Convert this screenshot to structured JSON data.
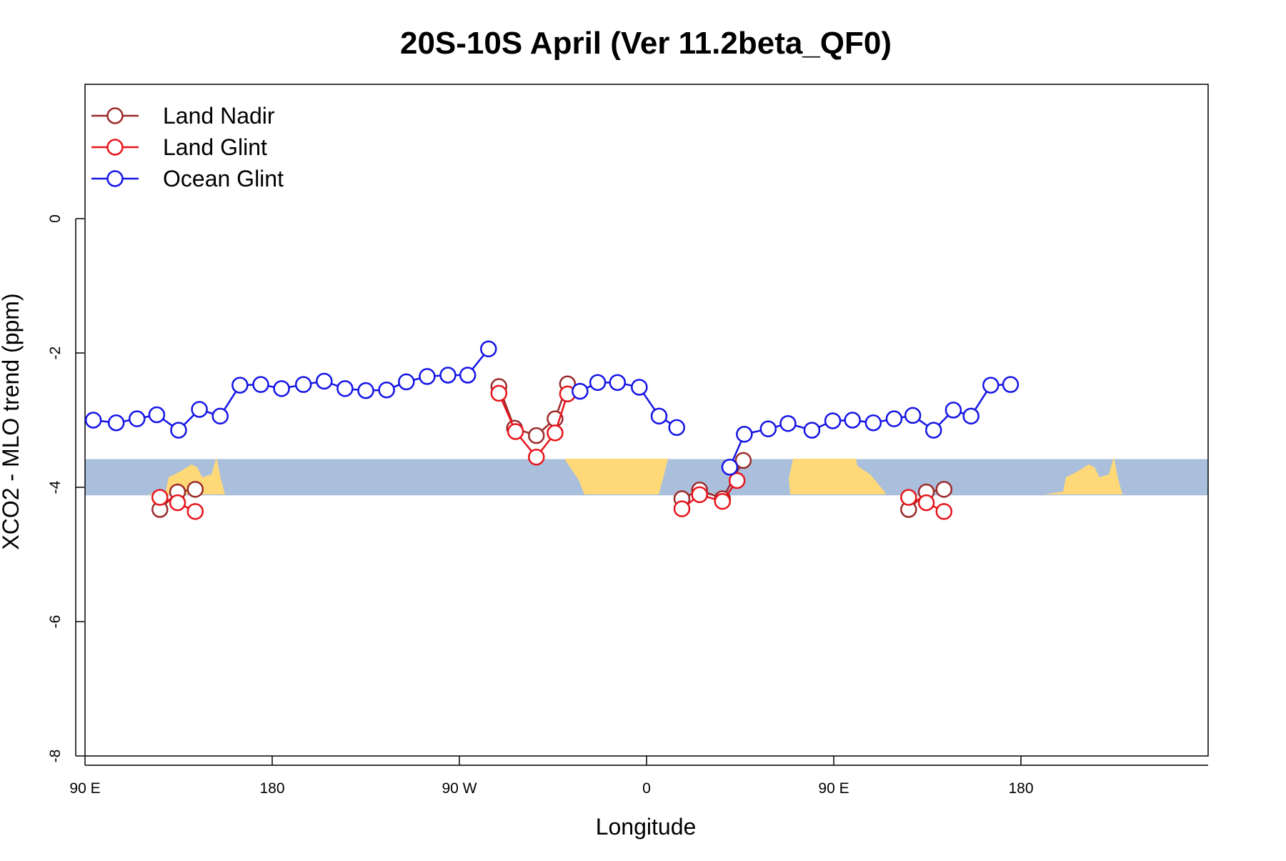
{
  "chart_data": {
    "type": "line",
    "title": "20S-10S April (Ver 11.2beta_QF0)",
    "xlabel": "Longitude",
    "ylabel": "XCO2 - MLO trend (ppm)",
    "xlim": [
      90,
      630
    ],
    "ylim": [
      -8,
      2
    ],
    "x_ticks": [
      {
        "value": 90,
        "label": "90 E"
      },
      {
        "value": 180,
        "label": "180"
      },
      {
        "value": 270,
        "label": "90 W"
      },
      {
        "value": 360,
        "label": "0"
      },
      {
        "value": 450,
        "label": "90 E"
      },
      {
        "value": 540,
        "label": "180"
      }
    ],
    "y_ticks": [
      {
        "value": 0,
        "label": "0"
      },
      {
        "value": -2,
        "label": "-2"
      },
      {
        "value": -4,
        "label": "-4"
      },
      {
        "value": -6,
        "label": "-6"
      },
      {
        "value": -8,
        "label": "-8"
      }
    ],
    "map_band": {
      "lat_range": "20S-10S",
      "y_top": -3.58,
      "y_bottom": -4.12,
      "ocean_color": "#a9bfdc",
      "land_color": "#ffd978"
    },
    "legend_position": "top-left",
    "series": [
      {
        "name": "Land Nadir",
        "color": "#9b2a2a",
        "segments": [
          [
            [
              126,
              -4.33
            ],
            [
              134.5,
              -4.07
            ],
            [
              143,
              -4.03
            ]
          ],
          [
            [
              289,
              -2.5
            ],
            [
              296.5,
              -3.12
            ],
            [
              307,
              -3.23
            ],
            [
              316,
              -2.98
            ],
            [
              322,
              -2.46
            ]
          ],
          [
            [
              377,
              -4.17
            ],
            [
              385.5,
              -4.04
            ],
            [
              396.5,
              -4.17
            ],
            [
              406.5,
              -3.6
            ]
          ],
          [
            [
              486,
              -4.33
            ],
            [
              494.5,
              -4.07
            ],
            [
              503,
              -4.03
            ]
          ]
        ]
      },
      {
        "name": "Land Glint",
        "color": "#e8141b",
        "segments": [
          [
            [
              126,
              -4.15
            ],
            [
              134.5,
              -4.23
            ],
            [
              143,
              -4.36
            ]
          ],
          [
            [
              289,
              -2.6
            ],
            [
              297,
              -3.17
            ],
            [
              307,
              -3.55
            ],
            [
              316,
              -3.19
            ],
            [
              322,
              -2.61
            ]
          ],
          [
            [
              377,
              -4.32
            ],
            [
              385.5,
              -4.11
            ],
            [
              396.5,
              -4.21
            ],
            [
              403.5,
              -3.9
            ]
          ],
          [
            [
              486,
              -4.15
            ],
            [
              494.5,
              -4.23
            ],
            [
              503,
              -4.36
            ]
          ]
        ]
      },
      {
        "name": "Ocean Glint",
        "color": "#1414e6",
        "segments": [
          [
            [
              94,
              -3.0
            ],
            [
              105,
              -3.04
            ],
            [
              115,
              -2.98
            ],
            [
              124.5,
              -2.92
            ],
            [
              135,
              -3.15
            ],
            [
              145,
              -2.84
            ],
            [
              155,
              -2.94
            ],
            [
              164.5,
              -2.48
            ],
            [
              174.5,
              -2.47
            ],
            [
              184.5,
              -2.53
            ],
            [
              195,
              -2.47
            ],
            [
              205,
              -2.42
            ],
            [
              215,
              -2.53
            ],
            [
              225,
              -2.56
            ],
            [
              235,
              -2.55
            ],
            [
              244.5,
              -2.43
            ],
            [
              254.5,
              -2.35
            ],
            [
              264.5,
              -2.33
            ],
            [
              274,
              -2.33
            ],
            [
              284,
              -1.94
            ]
          ],
          [
            [
              328,
              -2.57
            ],
            [
              336.5,
              -2.44
            ],
            [
              346,
              -2.44
            ],
            [
              356.5,
              -2.51
            ],
            [
              366,
              -2.94
            ],
            [
              374.5,
              -3.11
            ]
          ],
          [
            [
              400,
              -3.7
            ],
            [
              407,
              -3.21
            ],
            [
              418.5,
              -3.13
            ],
            [
              428,
              -3.05
            ],
            [
              439.5,
              -3.15
            ],
            [
              449.5,
              -3.01
            ],
            [
              459,
              -3.0
            ],
            [
              469,
              -3.04
            ],
            [
              479,
              -2.98
            ],
            [
              488,
              -2.93
            ],
            [
              498,
              -3.15
            ],
            [
              507.5,
              -2.85
            ],
            [
              516,
              -2.94
            ],
            [
              525.5,
              -2.48
            ],
            [
              535,
              -2.47
            ]
          ]
        ]
      }
    ]
  }
}
